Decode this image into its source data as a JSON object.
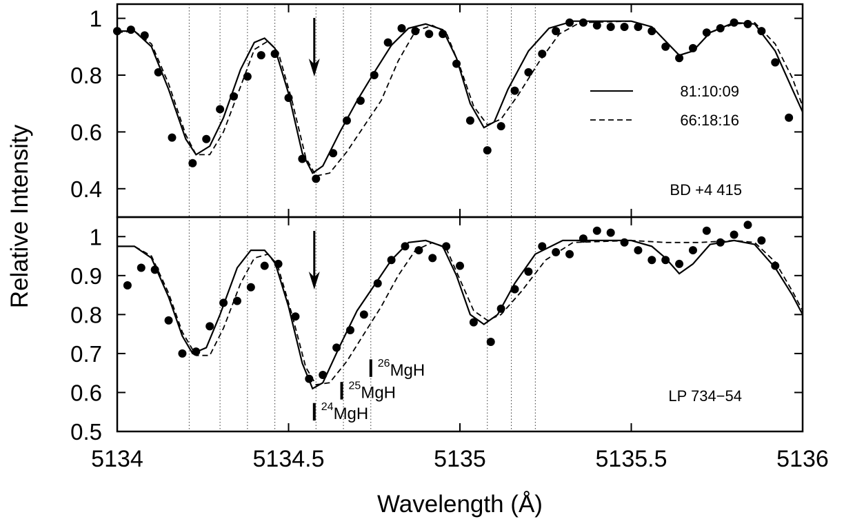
{
  "chart_data": {
    "type": "scatter",
    "xlabel": "Wavelength (Å)",
    "ylabel": "Relative Intensity",
    "xlim": [
      5134,
      5136
    ],
    "xticks": [
      {
        "value": 5134,
        "label": "5134"
      },
      {
        "value": 5134.5,
        "label": "5134.5"
      },
      {
        "value": 5135,
        "label": "5135"
      },
      {
        "value": 5135.5,
        "label": "5135.5"
      },
      {
        "value": 5136,
        "label": "5136"
      }
    ],
    "vlines": [
      5134.21,
      5134.3,
      5134.38,
      5134.46,
      5134.58,
      5134.66,
      5134.74,
      5135.08,
      5135.15,
      5135.22
    ],
    "legend": {
      "placement": "upper-right of top panel",
      "entries": [
        {
          "label": "81:10:09",
          "style": "solid"
        },
        {
          "label": "66:18:16",
          "style": "dashed"
        }
      ]
    },
    "panels": [
      {
        "id": "top",
        "label": "BD +4 415",
        "ylim": [
          0.3,
          1.05
        ],
        "yticks": [
          {
            "value": 0.4,
            "label": "0.4"
          },
          {
            "value": 0.6,
            "label": "0.6"
          },
          {
            "value": 0.8,
            "label": "0.8"
          },
          {
            "value": 1.0,
            "label": "1"
          }
        ],
        "arrow_x": 5134.575,
        "observed": [
          [
            5134.0,
            0.955
          ],
          [
            5134.04,
            0.96
          ],
          [
            5134.08,
            0.94
          ],
          [
            5134.12,
            0.81
          ],
          [
            5134.16,
            0.58
          ],
          [
            5134.22,
            0.49
          ],
          [
            5134.26,
            0.575
          ],
          [
            5134.3,
            0.68
          ],
          [
            5134.34,
            0.725
          ],
          [
            5134.38,
            0.795
          ],
          [
            5134.42,
            0.87
          ],
          [
            5134.46,
            0.875
          ],
          [
            5134.5,
            0.72
          ],
          [
            5134.54,
            0.505
          ],
          [
            5134.58,
            0.435
          ],
          [
            5134.63,
            0.525
          ],
          [
            5134.67,
            0.64
          ],
          [
            5134.71,
            0.71
          ],
          [
            5134.75,
            0.8
          ],
          [
            5134.79,
            0.915
          ],
          [
            5134.83,
            0.965
          ],
          [
            5134.87,
            0.955
          ],
          [
            5134.91,
            0.945
          ],
          [
            5134.95,
            0.945
          ],
          [
            5134.99,
            0.84
          ],
          [
            5135.03,
            0.64
          ],
          [
            5135.08,
            0.535
          ],
          [
            5135.12,
            0.62
          ],
          [
            5135.16,
            0.745
          ],
          [
            5135.2,
            0.81
          ],
          [
            5135.24,
            0.875
          ],
          [
            5135.28,
            0.955
          ],
          [
            5135.32,
            0.985
          ],
          [
            5135.36,
            0.985
          ],
          [
            5135.4,
            0.975
          ],
          [
            5135.44,
            0.97
          ],
          [
            5135.48,
            0.97
          ],
          [
            5135.52,
            0.97
          ],
          [
            5135.56,
            0.955
          ],
          [
            5135.6,
            0.9
          ],
          [
            5135.64,
            0.86
          ],
          [
            5135.68,
            0.895
          ],
          [
            5135.72,
            0.95
          ],
          [
            5135.76,
            0.965
          ],
          [
            5135.8,
            0.985
          ],
          [
            5135.84,
            0.98
          ],
          [
            5135.88,
            0.955
          ],
          [
            5135.92,
            0.845
          ],
          [
            5135.96,
            0.65
          ]
        ],
        "fit_81_10_09": [
          [
            5134.0,
            0.955
          ],
          [
            5134.05,
            0.955
          ],
          [
            5134.1,
            0.9
          ],
          [
            5134.15,
            0.75
          ],
          [
            5134.2,
            0.575
          ],
          [
            5134.23,
            0.52
          ],
          [
            5134.27,
            0.55
          ],
          [
            5134.31,
            0.65
          ],
          [
            5134.36,
            0.82
          ],
          [
            5134.4,
            0.915
          ],
          [
            5134.43,
            0.93
          ],
          [
            5134.46,
            0.895
          ],
          [
            5134.5,
            0.735
          ],
          [
            5134.54,
            0.525
          ],
          [
            5134.57,
            0.455
          ],
          [
            5134.6,
            0.48
          ],
          [
            5134.65,
            0.6
          ],
          [
            5134.7,
            0.71
          ],
          [
            5134.75,
            0.81
          ],
          [
            5134.8,
            0.905
          ],
          [
            5134.85,
            0.965
          ],
          [
            5134.9,
            0.98
          ],
          [
            5134.95,
            0.96
          ],
          [
            5134.99,
            0.86
          ],
          [
            5135.03,
            0.7
          ],
          [
            5135.07,
            0.615
          ],
          [
            5135.1,
            0.635
          ],
          [
            5135.14,
            0.75
          ],
          [
            5135.2,
            0.885
          ],
          [
            5135.26,
            0.965
          ],
          [
            5135.33,
            0.99
          ],
          [
            5135.5,
            0.99
          ],
          [
            5135.56,
            0.97
          ],
          [
            5135.6,
            0.92
          ],
          [
            5135.64,
            0.87
          ],
          [
            5135.68,
            0.885
          ],
          [
            5135.73,
            0.95
          ],
          [
            5135.8,
            0.985
          ],
          [
            5135.86,
            0.98
          ],
          [
            5135.92,
            0.885
          ],
          [
            5135.97,
            0.75
          ],
          [
            5136.0,
            0.67
          ]
        ],
        "fit_66_18_16": [
          [
            5134.0,
            0.95
          ],
          [
            5134.05,
            0.955
          ],
          [
            5134.1,
            0.91
          ],
          [
            5134.15,
            0.77
          ],
          [
            5134.2,
            0.59
          ],
          [
            5134.23,
            0.52
          ],
          [
            5134.27,
            0.52
          ],
          [
            5134.31,
            0.6
          ],
          [
            5134.36,
            0.76
          ],
          [
            5134.4,
            0.89
          ],
          [
            5134.44,
            0.92
          ],
          [
            5134.47,
            0.88
          ],
          [
            5134.51,
            0.71
          ],
          [
            5134.55,
            0.51
          ],
          [
            5134.58,
            0.445
          ],
          [
            5134.62,
            0.455
          ],
          [
            5134.67,
            0.53
          ],
          [
            5134.72,
            0.62
          ],
          [
            5134.77,
            0.71
          ],
          [
            5134.82,
            0.85
          ],
          [
            5134.87,
            0.955
          ],
          [
            5134.92,
            0.975
          ],
          [
            5134.96,
            0.95
          ],
          [
            5135.0,
            0.83
          ],
          [
            5135.04,
            0.69
          ],
          [
            5135.08,
            0.625
          ],
          [
            5135.12,
            0.645
          ],
          [
            5135.17,
            0.73
          ],
          [
            5135.23,
            0.845
          ],
          [
            5135.29,
            0.945
          ],
          [
            5135.35,
            0.985
          ],
          [
            5135.5,
            0.99
          ],
          [
            5135.56,
            0.97
          ],
          [
            5135.6,
            0.92
          ],
          [
            5135.64,
            0.87
          ],
          [
            5135.68,
            0.885
          ],
          [
            5135.73,
            0.95
          ],
          [
            5135.8,
            0.98
          ],
          [
            5135.86,
            0.985
          ],
          [
            5135.92,
            0.91
          ],
          [
            5135.97,
            0.79
          ],
          [
            5136.0,
            0.69
          ]
        ]
      },
      {
        "id": "bottom",
        "label": "LP 734−54",
        "ylim": [
          0.5,
          1.05
        ],
        "yticks": [
          {
            "value": 0.5,
            "label": "0.5"
          },
          {
            "value": 0.6,
            "label": "0.6"
          },
          {
            "value": 0.7,
            "label": "0.7"
          },
          {
            "value": 0.8,
            "label": "0.8"
          },
          {
            "value": 0.9,
            "label": "0.9"
          },
          {
            "value": 1.0,
            "label": "1"
          }
        ],
        "arrow_x": 5134.575,
        "isotope_markers": [
          {
            "x": 5134.575,
            "y_bottom": 0.528,
            "y_top": 0.573,
            "mass": "24",
            "species": "MgH"
          },
          {
            "x": 5134.655,
            "y_bottom": 0.582,
            "y_top": 0.627,
            "mass": "25",
            "species": "MgH"
          },
          {
            "x": 5134.74,
            "y_bottom": 0.64,
            "y_top": 0.685,
            "mass": "26",
            "species": "MgH"
          }
        ],
        "observed": [
          [
            5134.03,
            0.875
          ],
          [
            5134.07,
            0.92
          ],
          [
            5134.11,
            0.915
          ],
          [
            5134.15,
            0.785
          ],
          [
            5134.19,
            0.7
          ],
          [
            5134.23,
            0.705
          ],
          [
            5134.27,
            0.77
          ],
          [
            5134.31,
            0.83
          ],
          [
            5134.35,
            0.835
          ],
          [
            5134.39,
            0.87
          ],
          [
            5134.43,
            0.925
          ],
          [
            5134.47,
            0.93
          ],
          [
            5134.52,
            0.795
          ],
          [
            5134.56,
            0.635
          ],
          [
            5134.6,
            0.645
          ],
          [
            5134.64,
            0.715
          ],
          [
            5134.68,
            0.76
          ],
          [
            5134.72,
            0.8
          ],
          [
            5134.76,
            0.88
          ],
          [
            5134.8,
            0.94
          ],
          [
            5134.84,
            0.975
          ],
          [
            5134.88,
            0.965
          ],
          [
            5134.92,
            0.945
          ],
          [
            5134.96,
            0.975
          ],
          [
            5135.0,
            0.925
          ],
          [
            5135.04,
            0.78
          ],
          [
            5135.09,
            0.73
          ],
          [
            5135.12,
            0.815
          ],
          [
            5135.16,
            0.865
          ],
          [
            5135.2,
            0.91
          ],
          [
            5135.24,
            0.975
          ],
          [
            5135.28,
            0.96
          ],
          [
            5135.32,
            0.955
          ],
          [
            5135.36,
            0.995
          ],
          [
            5135.4,
            1.015
          ],
          [
            5135.44,
            1.01
          ],
          [
            5135.48,
            0.985
          ],
          [
            5135.52,
            0.965
          ],
          [
            5135.56,
            0.94
          ],
          [
            5135.6,
            0.94
          ],
          [
            5135.64,
            0.93
          ],
          [
            5135.68,
            0.965
          ],
          [
            5135.72,
            1.015
          ],
          [
            5135.76,
            0.985
          ],
          [
            5135.8,
            1.005
          ],
          [
            5135.84,
            1.03
          ],
          [
            5135.88,
            0.99
          ],
          [
            5135.92,
            0.925
          ]
        ],
        "fit_81_10_09": [
          [
            5134.0,
            0.975
          ],
          [
            5134.05,
            0.975
          ],
          [
            5134.1,
            0.945
          ],
          [
            5134.15,
            0.845
          ],
          [
            5134.19,
            0.745
          ],
          [
            5134.22,
            0.7
          ],
          [
            5134.26,
            0.715
          ],
          [
            5134.3,
            0.8
          ],
          [
            5134.35,
            0.92
          ],
          [
            5134.39,
            0.965
          ],
          [
            5134.43,
            0.965
          ],
          [
            5134.46,
            0.935
          ],
          [
            5134.5,
            0.82
          ],
          [
            5134.54,
            0.675
          ],
          [
            5134.57,
            0.61
          ],
          [
            5134.6,
            0.625
          ],
          [
            5134.65,
            0.72
          ],
          [
            5134.7,
            0.81
          ],
          [
            5134.75,
            0.875
          ],
          [
            5134.8,
            0.94
          ],
          [
            5134.85,
            0.985
          ],
          [
            5134.9,
            0.99
          ],
          [
            5134.95,
            0.975
          ],
          [
            5134.99,
            0.9
          ],
          [
            5135.03,
            0.8
          ],
          [
            5135.07,
            0.775
          ],
          [
            5135.11,
            0.8
          ],
          [
            5135.16,
            0.88
          ],
          [
            5135.22,
            0.955
          ],
          [
            5135.3,
            0.99
          ],
          [
            5135.5,
            0.99
          ],
          [
            5135.56,
            0.975
          ],
          [
            5135.6,
            0.945
          ],
          [
            5135.64,
            0.905
          ],
          [
            5135.68,
            0.93
          ],
          [
            5135.73,
            0.98
          ],
          [
            5135.8,
            0.99
          ],
          [
            5135.86,
            0.98
          ],
          [
            5135.92,
            0.92
          ],
          [
            5135.97,
            0.85
          ],
          [
            5136.0,
            0.8
          ]
        ],
        "fit_66_18_16": [
          [
            5134.0,
            0.975
          ],
          [
            5134.05,
            0.975
          ],
          [
            5134.1,
            0.95
          ],
          [
            5134.15,
            0.855
          ],
          [
            5134.19,
            0.755
          ],
          [
            5134.23,
            0.695
          ],
          [
            5134.27,
            0.695
          ],
          [
            5134.31,
            0.765
          ],
          [
            5134.36,
            0.88
          ],
          [
            5134.4,
            0.945
          ],
          [
            5134.44,
            0.955
          ],
          [
            5134.47,
            0.92
          ],
          [
            5134.51,
            0.8
          ],
          [
            5134.55,
            0.665
          ],
          [
            5134.58,
            0.62
          ],
          [
            5134.62,
            0.625
          ],
          [
            5134.67,
            0.68
          ],
          [
            5134.72,
            0.75
          ],
          [
            5134.77,
            0.82
          ],
          [
            5134.82,
            0.9
          ],
          [
            5134.87,
            0.965
          ],
          [
            5134.92,
            0.985
          ],
          [
            5134.96,
            0.97
          ],
          [
            5135.0,
            0.89
          ],
          [
            5135.04,
            0.81
          ],
          [
            5135.08,
            0.785
          ],
          [
            5135.12,
            0.8
          ],
          [
            5135.18,
            0.86
          ],
          [
            5135.25,
            0.94
          ],
          [
            5135.33,
            0.985
          ],
          [
            5135.5,
            0.99
          ],
          [
            5135.6,
            0.985
          ],
          [
            5135.7,
            0.985
          ],
          [
            5135.8,
            0.99
          ],
          [
            5135.86,
            0.985
          ],
          [
            5135.92,
            0.935
          ],
          [
            5135.97,
            0.86
          ],
          [
            5136.0,
            0.81
          ]
        ]
      }
    ]
  }
}
